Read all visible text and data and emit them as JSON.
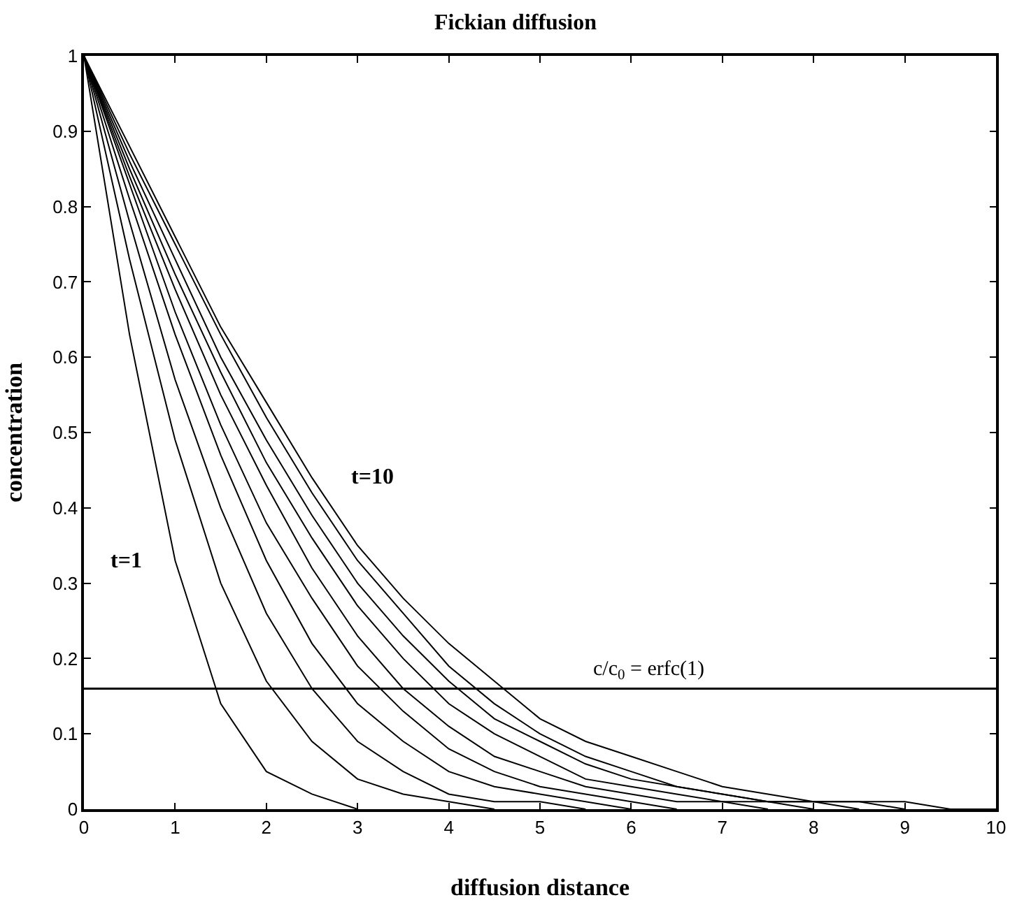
{
  "chart_data": {
    "type": "line",
    "title": "Fickian diffusion",
    "xlabel": "diffusion distance",
    "ylabel": "concentration",
    "x": [
      0,
      0.5,
      1,
      1.5,
      2,
      2.5,
      3,
      3.5,
      4,
      4.5,
      5,
      5.5,
      6,
      6.5,
      7,
      7.5,
      8,
      8.5,
      9,
      9.5,
      10
    ],
    "series": [
      {
        "name": "t=1",
        "color": "#000000",
        "values": [
          1,
          0.63,
          0.33,
          0.14,
          0.05,
          0.02,
          0,
          null,
          null,
          null,
          null,
          null,
          null,
          null,
          null,
          null,
          null,
          null,
          null,
          null,
          null
        ]
      },
      {
        "color": "#000000",
        "values": [
          1,
          0.73,
          0.49,
          0.3,
          0.17,
          0.09,
          0.04,
          0.02,
          0.01,
          0,
          null,
          null,
          null,
          null,
          null,
          null,
          null,
          null,
          null,
          null,
          null
        ]
      },
      {
        "color": "#000000",
        "values": [
          1,
          0.78,
          0.57,
          0.4,
          0.26,
          0.16,
          0.09,
          0.05,
          0.02,
          0.01,
          0.01,
          0,
          null,
          null,
          null,
          null,
          null,
          null,
          null,
          null,
          null
        ]
      },
      {
        "color": "#000000",
        "values": [
          1,
          0.81,
          0.63,
          0.47,
          0.33,
          0.22,
          0.14,
          0.09,
          0.05,
          0.03,
          0.02,
          0.01,
          0,
          null,
          null,
          null,
          null,
          null,
          null,
          null,
          null
        ]
      },
      {
        "color": "#000000",
        "values": [
          1,
          0.83,
          0.66,
          0.51,
          0.38,
          0.28,
          0.19,
          0.13,
          0.08,
          0.05,
          0.03,
          0.02,
          0.01,
          0,
          null,
          null,
          null,
          null,
          null,
          null,
          null
        ]
      },
      {
        "color": "#000000",
        "values": [
          1,
          0.84,
          0.69,
          0.55,
          0.43,
          0.32,
          0.23,
          0.16,
          0.11,
          0.07,
          0.05,
          0.03,
          0.02,
          0.01,
          0.01,
          0,
          null,
          null,
          null,
          null,
          null
        ]
      },
      {
        "color": "#000000",
        "values": [
          1,
          0.85,
          0.71,
          0.58,
          0.46,
          0.36,
          0.27,
          0.2,
          0.14,
          0.1,
          0.07,
          0.04,
          0.03,
          0.02,
          0.01,
          0.01,
          0,
          null,
          null,
          null,
          null
        ]
      },
      {
        "color": "#000000",
        "values": [
          1,
          0.86,
          0.73,
          0.6,
          0.49,
          0.39,
          0.3,
          0.23,
          0.17,
          0.12,
          0.09,
          0.06,
          0.04,
          0.03,
          0.02,
          0.01,
          0.01,
          0,
          null,
          null,
          null
        ]
      },
      {
        "color": "#000000",
        "values": [
          1,
          0.87,
          0.75,
          0.63,
          0.52,
          0.42,
          0.33,
          0.26,
          0.19,
          0.14,
          0.1,
          0.07,
          0.05,
          0.03,
          0.02,
          0.01,
          0.01,
          0.01,
          0,
          null,
          null
        ]
      },
      {
        "name": "t=10",
        "color": "#000000",
        "values": [
          1,
          0.88,
          0.76,
          0.64,
          0.54,
          0.44,
          0.35,
          0.28,
          0.22,
          0.17,
          0.12,
          0.09,
          0.07,
          0.05,
          0.03,
          0.02,
          0.01,
          0.01,
          0.01,
          0,
          0
        ]
      }
    ],
    "ref_lines": [
      {
        "axis": "y",
        "value": 0.16,
        "label": "c/c$_{0}$ = erfc(1)",
        "color": "#000000"
      }
    ],
    "xlim": [
      0,
      10
    ],
    "ylim": [
      0,
      1
    ],
    "xticks": [
      0,
      1,
      2,
      3,
      4,
      5,
      6,
      7,
      8,
      9,
      10
    ],
    "yticks": [
      0,
      0.1,
      0.2,
      0.3,
      0.4,
      0.5,
      0.6,
      0.7,
      0.8,
      0.9,
      1
    ],
    "grid": false,
    "legend": false,
    "marker": "none",
    "line_style": "solid"
  }
}
